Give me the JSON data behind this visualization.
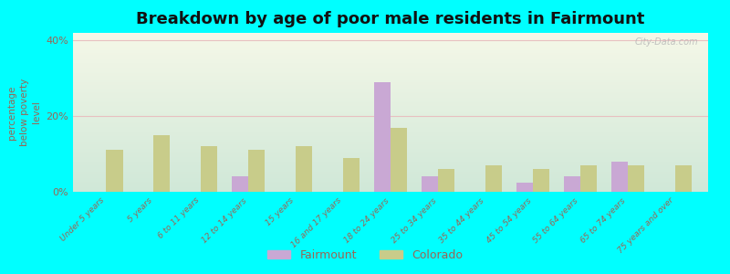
{
  "title": "Breakdown by age of poor male residents in Fairmount",
  "categories": [
    "Under 5 years",
    "5 years",
    "6 to 11 years",
    "12 to 14 years",
    "15 years",
    "16 and 17 years",
    "18 to 24 years",
    "25 to 34 years",
    "35 to 44 years",
    "45 to 54 years",
    "55 to 64 years",
    "65 to 74 years",
    "75 years and over"
  ],
  "fairmount_values": [
    0,
    0,
    0,
    4.0,
    0,
    0,
    29.0,
    4.0,
    0,
    2.5,
    4.0,
    8.0,
    0
  ],
  "colorado_values": [
    11.0,
    15.0,
    12.0,
    11.0,
    12.0,
    9.0,
    17.0,
    6.0,
    7.0,
    6.0,
    7.0,
    7.0,
    7.0
  ],
  "fairmount_color": "#c9a8d4",
  "colorado_color": "#c8cc8a",
  "background_color": "#00ffff",
  "grad_top": "#f5f8e8",
  "grad_bottom": "#d0e8d8",
  "ylabel": "percentage\nbelow poverty\nlevel",
  "ylim": [
    0,
    42
  ],
  "yticks": [
    0,
    20,
    40
  ],
  "ytick_labels": [
    "0%",
    "20%",
    "40%"
  ],
  "title_fontsize": 13,
  "bar_width": 0.35,
  "watermark": "City-Data.com",
  "grid_color": "#e8c0c0",
  "tick_color": "#996655",
  "label_color": "#996655"
}
